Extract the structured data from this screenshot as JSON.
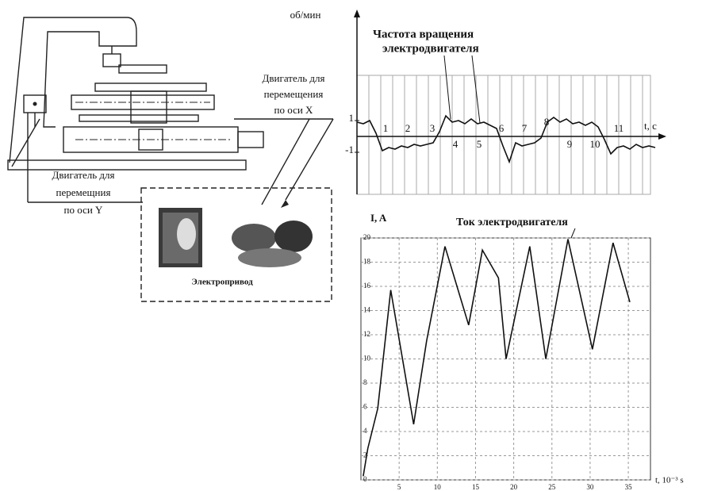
{
  "machine": {
    "x_motor_label": [
      "Двигатель для",
      "перемещения",
      "по оси X"
    ],
    "y_motor_label": [
      "Двигатель для",
      "перемещния",
      "по оси Y"
    ],
    "drive_label": "Электропривод"
  },
  "speed_plot": {
    "type": "line",
    "title": [
      "Частота вращения",
      "электродвигателя"
    ],
    "y_label": "об/мин",
    "x_label": "t, c",
    "values": [
      0.9,
      0.8,
      1,
      0.2,
      -0.9,
      -0.7,
      -0.8,
      -0.6,
      -0.7,
      -0.5,
      -0.6,
      -0.5,
      -0.4,
      0.3,
      1.3,
      0.9,
      1,
      0.8,
      1.1,
      0.8,
      0.9,
      0.7,
      0.5,
      -0.6,
      -1.6,
      -0.4,
      -0.6,
      -0.5,
      -0.4,
      -0.1,
      0.9,
      1.2,
      0.9,
      1.1,
      0.8,
      0.9,
      0.7,
      0.9,
      0.6,
      -0.2,
      -1.1,
      -0.7,
      -0.6,
      -0.8,
      -0.5,
      -0.7,
      -0.6,
      -0.7
    ],
    "ylim": [
      -3.65,
      3.85
    ],
    "yticks": [
      1,
      -1
    ],
    "segment_labels": [
      "1",
      "2",
      "3",
      "4",
      "5",
      "6",
      "7",
      "8",
      "9",
      "10",
      "11"
    ],
    "color": "#111"
  },
  "current_plot": {
    "type": "line",
    "title": "Ток  электродвигателя",
    "y_label": "I, A",
    "x_label": "t, 10⁻³ s",
    "x": [
      0.3,
      0.9,
      2.2,
      3.9,
      6.9,
      8.6,
      11,
      14.1,
      15.9,
      18,
      19,
      22.1,
      24.2,
      27.1,
      30.3,
      33,
      35.2
    ],
    "values": [
      0.3,
      2.6,
      5.9,
      15.7,
      4.6,
      11.5,
      19.3,
      12.8,
      19,
      16.7,
      10,
      19.3,
      10,
      19.9,
      10.8,
      19.6,
      14.7
    ],
    "xlim": [
      0,
      37.9
    ],
    "ylim": [
      0,
      20
    ],
    "xticks": [
      5,
      10,
      15,
      20,
      25,
      30,
      35
    ],
    "yticks": [
      0,
      2,
      4,
      6,
      8,
      10,
      12,
      14,
      16,
      18,
      20
    ],
    "grid": true,
    "color": "#111"
  }
}
